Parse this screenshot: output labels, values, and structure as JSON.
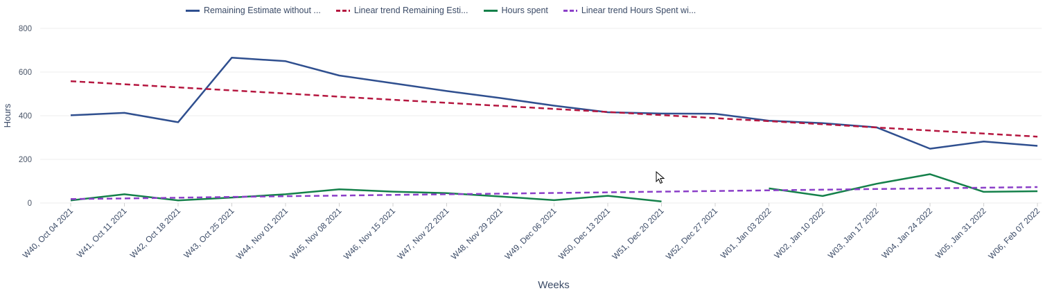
{
  "chart_data": {
    "type": "line",
    "xlabel": "Weeks",
    "ylabel": "Hours",
    "ylim": [
      0,
      800
    ],
    "yticks": [
      0,
      200,
      400,
      600,
      800
    ],
    "grid": true,
    "legend_position": "top",
    "categories": [
      "W40, Oct 04 2021",
      "W41, Oct 11 2021",
      "W42, Oct 18 2021",
      "W43, Oct 25 2021",
      "W44, Nov 01 2021",
      "W45, Nov 08 2021",
      "W46, Nov 15 2021",
      "W47, Nov 22 2021",
      "W48, Nov 29 2021",
      "W49, Dec 06 2021",
      "W50, Dec 13 2021",
      "W51, Dec 20 2021",
      "W52, Dec 27 2021",
      "W01, Jan 03 2022",
      "W02, Jan 10 2022",
      "W03, Jan 17 2022",
      "W04, Jan 24 2022",
      "W05, Jan 31 2022",
      "W06, Feb 07 2022"
    ],
    "series": [
      {
        "name": "Remaining Estimate without ...",
        "color": "#2f4f8f",
        "dashed": false,
        "values": [
          402,
          413,
          370,
          666,
          650,
          584,
          549,
          513,
          481,
          446,
          416,
          410,
          409,
          377,
          366,
          347,
          249,
          282,
          262
        ]
      },
      {
        "name": "Linear trend Remaining Esti...",
        "color": "#b5163f",
        "dashed": true,
        "values": [
          558,
          544,
          530,
          516,
          502,
          487,
          473,
          459,
          445,
          431,
          417,
          403,
          389,
          375,
          361,
          346,
          332,
          318,
          304
        ]
      },
      {
        "name": "Hours spent",
        "color": "#14804a",
        "dashed": false,
        "values": [
          12,
          40,
          12,
          25,
          40,
          63,
          52,
          45,
          30,
          13,
          33,
          7,
          null,
          67,
          32,
          88,
          132,
          51,
          54
        ]
      },
      {
        "name": "Linear trend Hours Spent wi...",
        "color": "#8b3fc8",
        "dashed": true,
        "values": [
          18,
          21,
          24,
          28,
          31,
          34,
          37,
          40,
          43,
          46,
          49,
          52,
          55,
          58,
          61,
          64,
          67,
          70,
          73
        ]
      }
    ]
  }
}
